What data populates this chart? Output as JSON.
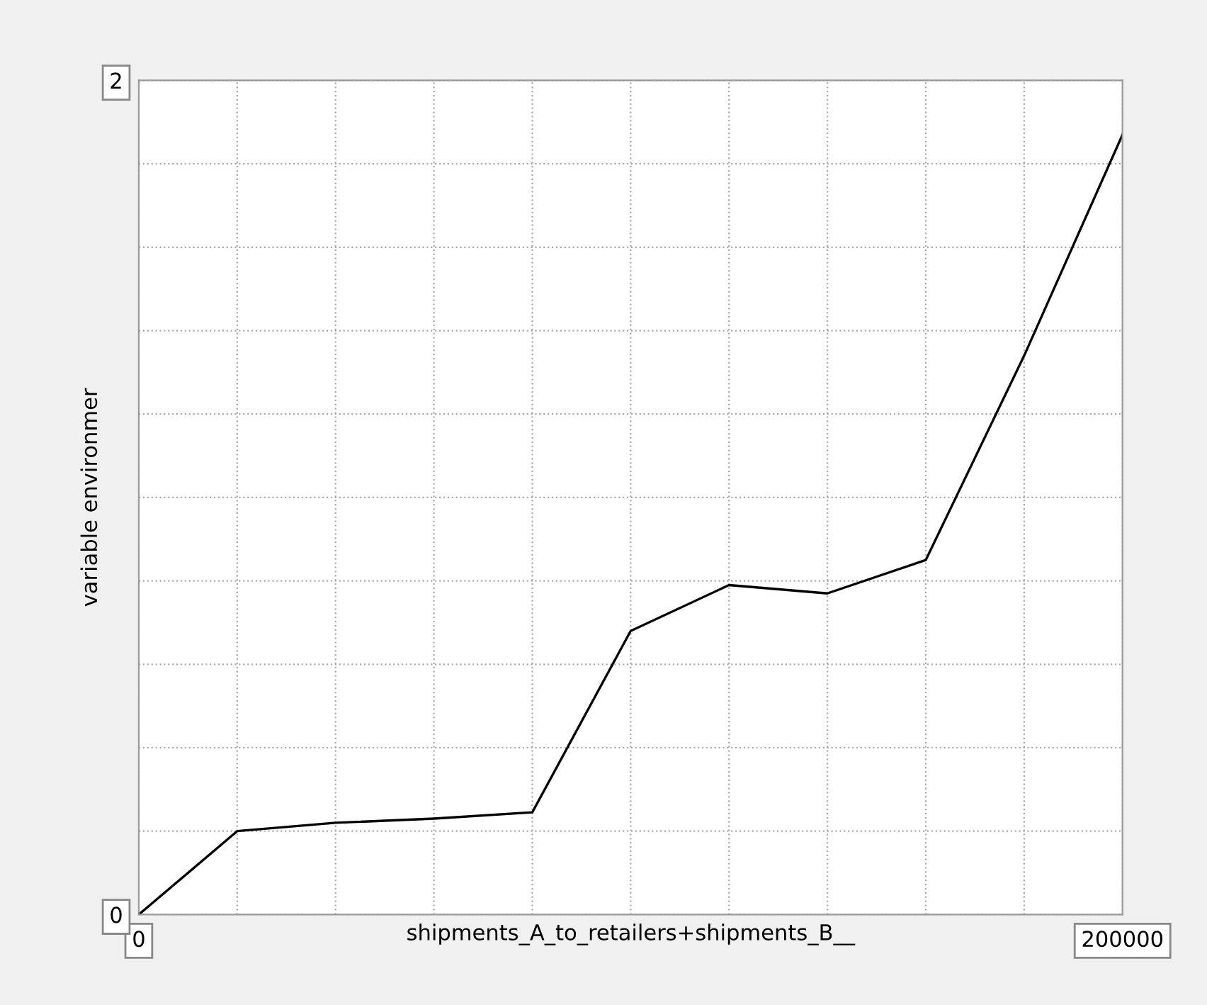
{
  "chart_data": {
    "type": "line",
    "xlabel": "shipments_A_to_retailers+shipments_B__",
    "ylabel": "variable environmer",
    "x": [
      0,
      20000,
      40000,
      60000,
      80000,
      100000,
      120000,
      140000,
      160000,
      180000,
      200000
    ],
    "series": [
      {
        "color": "#000000",
        "values": [
          0,
          0.2,
          0.22,
          0.23,
          0.245,
          0.68,
          0.79,
          0.77,
          0.85,
          1.34,
          1.87
        ]
      }
    ],
    "xlim": [
      0,
      200000
    ],
    "ylim": [
      0,
      2
    ],
    "xticks": [
      0,
      {
        "value": 20000,
        "label": null
      },
      {
        "value": 40000,
        "label": null
      },
      {
        "value": 60000,
        "label": null
      },
      {
        "value": 80000,
        "label": null
      },
      {
        "value": 100000,
        "label": null
      },
      {
        "value": 120000,
        "label": null
      },
      {
        "value": 140000,
        "label": null
      },
      {
        "value": 160000,
        "label": null
      },
      {
        "value": 180000,
        "label": null
      },
      200000
    ],
    "yticks": [
      0,
      {
        "value": 0.2,
        "label": null
      },
      {
        "value": 0.4,
        "label": null
      },
      {
        "value": 0.6,
        "label": null
      },
      {
        "value": 0.8,
        "label": null
      },
      {
        "value": 1,
        "label": null
      },
      {
        "value": 1.2,
        "label": null
      },
      {
        "value": 1.4,
        "label": null
      },
      {
        "value": 1.6,
        "label": null
      },
      {
        "value": 1.8,
        "label": null
      },
      2
    ],
    "grid": true,
    "marker": "none",
    "line_style": "solid"
  }
}
